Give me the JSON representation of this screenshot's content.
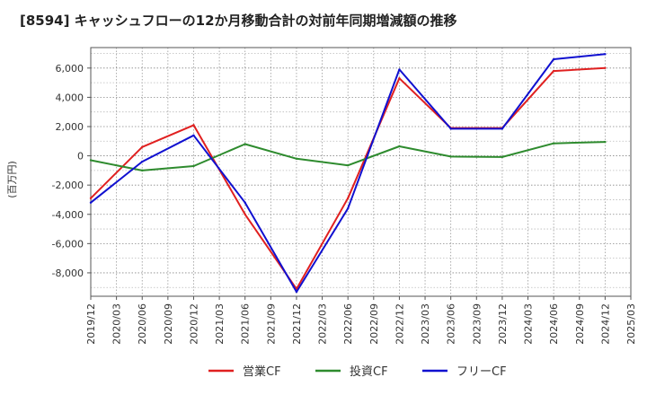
{
  "chart_data": {
    "type": "line",
    "title": "[8594]  キャッシュフローの12か月移動合計の対前年同期増減額の推移",
    "ylabel": "(百万円)",
    "xlabel": "",
    "ylim": [
      -9600,
      7400
    ],
    "yticks": [
      6000,
      4000,
      2000,
      0,
      -2000,
      -4000,
      -6000,
      -8000
    ],
    "ytick_labels": [
      "6,000",
      "4,000",
      "2,000",
      "0",
      "-2,000",
      "-4,000",
      "-6,000",
      "-8,000"
    ],
    "x": [
      "2019/12",
      "2020/03",
      "2020/06",
      "2020/09",
      "2020/12",
      "2021/03",
      "2021/06",
      "2021/09",
      "2021/12",
      "2022/03",
      "2022/06",
      "2022/09",
      "2022/12",
      "2023/03",
      "2023/06",
      "2023/09",
      "2023/12",
      "2024/03",
      "2024/06",
      "2024/09",
      "2024/12",
      "2025/03"
    ],
    "grid": true,
    "legend_position": "bottom",
    "series": [
      {
        "name": "営業CF",
        "color": "#e02020",
        "values": [
          -2900,
          null,
          600,
          null,
          2100,
          null,
          -4000,
          null,
          -9100,
          null,
          -2900,
          null,
          5300,
          null,
          1900,
          null,
          1900,
          null,
          5800,
          null,
          6000,
          null
        ]
      },
      {
        "name": "投資CF",
        "color": "#2e8b2e",
        "values": [
          -300,
          null,
          -1000,
          null,
          -700,
          null,
          800,
          null,
          -200,
          null,
          -650,
          null,
          650,
          null,
          -50,
          null,
          -80,
          null,
          850,
          null,
          950,
          null
        ]
      },
      {
        "name": "フリーCF",
        "color": "#1010d0",
        "values": [
          -3200,
          null,
          -400,
          null,
          1400,
          null,
          -3200,
          null,
          -9300,
          null,
          -3600,
          null,
          5900,
          null,
          1850,
          null,
          1850,
          null,
          6600,
          null,
          6950,
          null
        ]
      }
    ]
  }
}
